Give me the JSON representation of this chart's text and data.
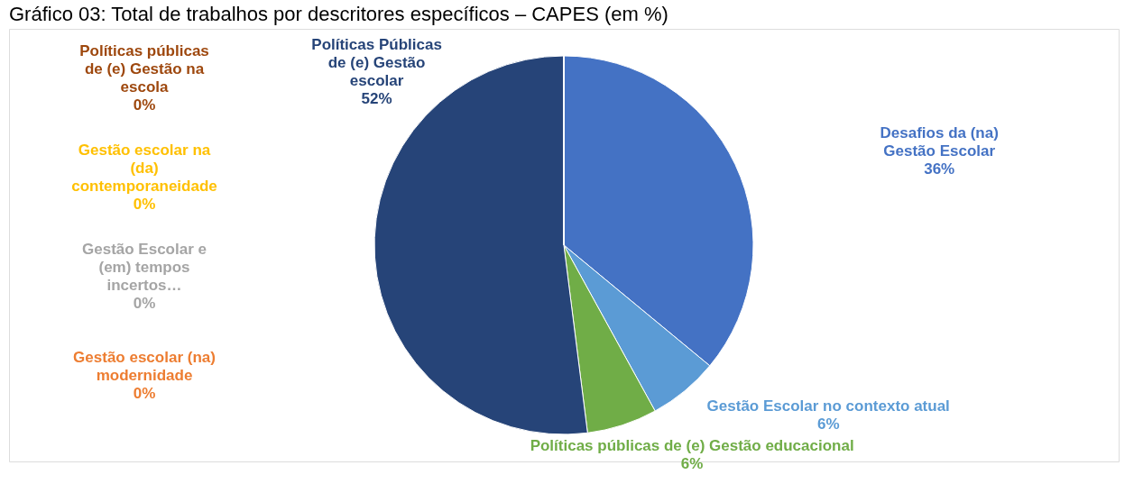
{
  "chart_data": {
    "type": "pie",
    "title": "Gráfico 03: Total de trabalhos por descritores específicos – CAPES (em %)",
    "categories": [
      "Desafios da (na) Gestão Escolar",
      "Gestão Escolar no contexto atual",
      "Políticas públicas de (e) Gestão educacional",
      "Políticas Públicas de (e) Gestão escolar",
      "Gestão escolar (na) modernidade",
      "Gestão Escolar e (em) tempos incertos…",
      "Gestão escolar na (da) contemporaneidade",
      "Políticas públicas de (e) Gestão na escola"
    ],
    "values": [
      36,
      6,
      6,
      52,
      0,
      0,
      0,
      0
    ],
    "value_labels": [
      "36%",
      "6%",
      "6%",
      "52%",
      "0%",
      "0%",
      "0%",
      "0%"
    ],
    "colors": [
      "#4472c4",
      "#5b9bd5",
      "#70ad47",
      "#264478",
      "#ed7d31",
      "#a5a5a5",
      "#ffc000",
      "#9e480e"
    ]
  }
}
